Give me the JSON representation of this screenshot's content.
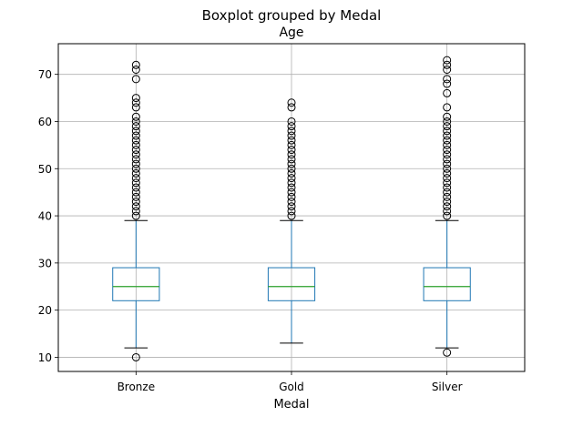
{
  "chart_data": {
    "type": "boxplot",
    "suptitle": "Boxplot grouped by Medal",
    "title": "Age",
    "xlabel": "Medal",
    "ylabel": "",
    "ylim": [
      7,
      76.5
    ],
    "yticks": [
      10,
      20,
      30,
      40,
      50,
      60,
      70
    ],
    "ytick_labels": [
      "10",
      "20",
      "30",
      "40",
      "50",
      "60",
      "70"
    ],
    "grid": true,
    "colors": {
      "box": "#1f77b4",
      "median": "#2ca02c",
      "whisker": "#1f77b4",
      "cap": "#000000",
      "flier": "#000000",
      "grid": "#b0b0b0"
    },
    "categories": [
      "Bronze",
      "Gold",
      "Silver"
    ],
    "boxes": [
      {
        "name": "Bronze",
        "whisker_low": 12,
        "q1": 22,
        "median": 25,
        "q3": 29,
        "whisker_high": 39,
        "outliers": [
          10,
          40,
          41,
          42,
          43,
          44,
          45,
          46,
          47,
          48,
          49,
          50,
          51,
          52,
          53,
          54,
          55,
          56,
          57,
          58,
          59,
          60,
          61,
          63,
          64,
          65,
          69,
          71,
          72
        ]
      },
      {
        "name": "Gold",
        "whisker_low": 13,
        "q1": 22,
        "median": 25,
        "q3": 29,
        "whisker_high": 39,
        "outliers": [
          40,
          41,
          42,
          43,
          44,
          45,
          46,
          47,
          48,
          49,
          50,
          51,
          52,
          53,
          54,
          55,
          56,
          57,
          58,
          59,
          60,
          63,
          64
        ]
      },
      {
        "name": "Silver",
        "whisker_low": 12,
        "q1": 22,
        "median": 25,
        "q3": 29,
        "whisker_high": 39,
        "outliers": [
          11,
          40,
          41,
          42,
          43,
          44,
          45,
          46,
          47,
          48,
          49,
          50,
          51,
          52,
          53,
          54,
          55,
          56,
          57,
          58,
          59,
          60,
          61,
          63,
          66,
          68,
          69,
          71,
          72,
          73
        ]
      }
    ]
  }
}
